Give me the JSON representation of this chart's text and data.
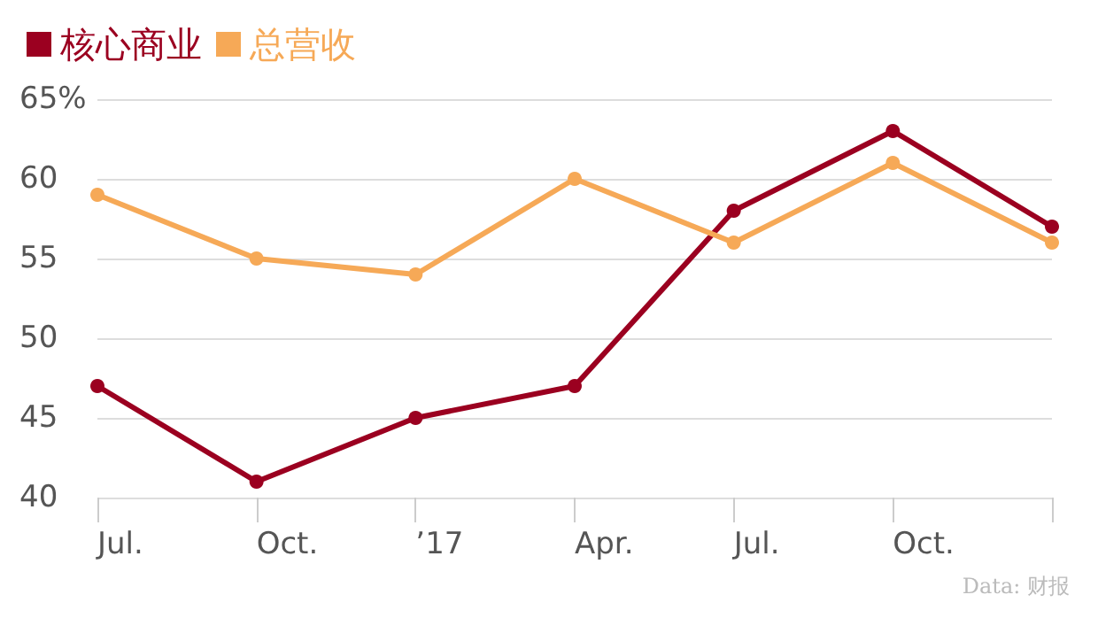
{
  "chart_data": {
    "type": "line",
    "categories": [
      "Jul.",
      "Oct.",
      "’17",
      "Apr.",
      "Jul.",
      "Oct.",
      null
    ],
    "series": [
      {
        "name": "核心商业",
        "color": "#9b0020",
        "values": [
          47,
          41,
          45,
          47,
          58,
          63,
          57
        ]
      },
      {
        "name": "总营收",
        "color": "#f6a957",
        "values": [
          59,
          55,
          54,
          60,
          56,
          61,
          56
        ]
      }
    ],
    "ylim": [
      40,
      65
    ],
    "yticks": [
      40,
      45,
      50,
      55,
      60,
      {
        "value": 65,
        "label": "65%"
      }
    ],
    "grid": "y",
    "legend": "top left",
    "marker": "circle",
    "line_style": "solid",
    "annotations": [
      "Data: 财报"
    ]
  }
}
